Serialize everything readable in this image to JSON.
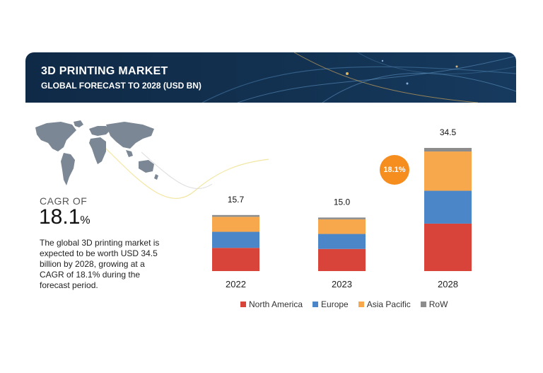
{
  "header": {
    "title": "3D PRINTING MARKET",
    "subtitle": "GLOBAL FORECAST TO 2028 (USD BN)"
  },
  "cagr": {
    "label": "CAGR OF",
    "value": "18.1",
    "unit": "%",
    "badge": "18.1%"
  },
  "description": "The global 3D printing market is expected to be worth USD 34.5 billion by 2028, growing at a CAGR of 18.1% during the forecast period.",
  "icons": [
    "world-map-icon"
  ],
  "colors": {
    "north_america": "#d9443a",
    "europe": "#4a86c8",
    "asia_pacific": "#f7a84d",
    "row": "#8c8c8c",
    "accent": "#f58d1f",
    "banner": "#12304f"
  },
  "chart_data": {
    "type": "bar",
    "stacked": true,
    "categories": [
      "2022",
      "2023",
      "2028"
    ],
    "totals": [
      15.7,
      15.0,
      34.5
    ],
    "series": [
      {
        "name": "North America",
        "values": [
          6.5,
          6.2,
          13.3
        ]
      },
      {
        "name": "Europe",
        "values": [
          4.5,
          4.2,
          9.2
        ]
      },
      {
        "name": "Asia Pacific",
        "values": [
          4.2,
          4.1,
          11.0
        ]
      },
      {
        "name": "RoW",
        "values": [
          0.5,
          0.5,
          1.0
        ]
      }
    ],
    "ylim": [
      0,
      34.5
    ],
    "grid": false,
    "legend": "bottom"
  }
}
